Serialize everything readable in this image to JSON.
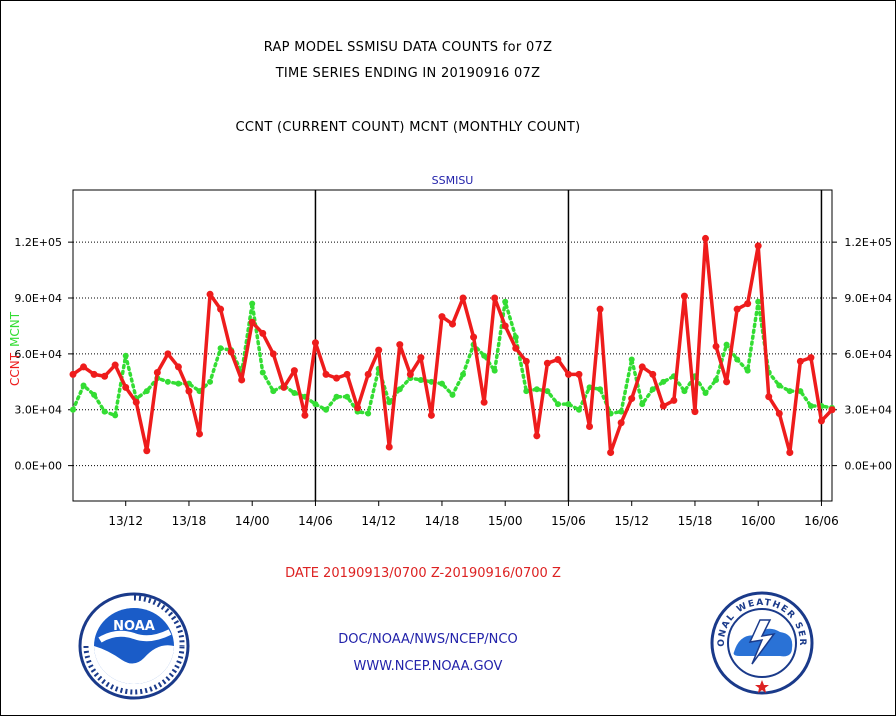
{
  "header": {
    "line1": "RAP MODEL SSMISU DATA COUNTS for 07Z",
    "line2": "TIME SERIES ENDING IN 20190916 07Z",
    "line3": "CCNT (CURRENT COUNT) MCNT (MONTHLY COUNT)"
  },
  "footer": {
    "date_range": "DATE 20190913/0700 Z-20190916/0700 Z",
    "org_path": "DOC/NOAA/NWS/NCEP/NCO",
    "website": "WWW.NCEP.NOAA.GOV",
    "noaa_logo_text": "NOAA",
    "nws_logo_text": "NATIONAL WEATHER SERVICE"
  },
  "colors": {
    "ccnt": "#ee1c1c",
    "mcnt": "#33dd33",
    "panel_title": "#2222aa"
  },
  "chart_data": {
    "type": "line",
    "title": "SSMISU",
    "ylabel_left": [
      "CCNT",
      "MCNT"
    ],
    "left_ticks": [
      "0.0E+00",
      "3.0E+04",
      "6.0E+04",
      "9.0E+04",
      "1.2E+05"
    ],
    "right_ticks": [
      "0.0E+00",
      "3.0E+04",
      "6.0E+04",
      "9.0E+04",
      "1.2E+05"
    ],
    "left_tick_values": [
      0,
      30000,
      60000,
      90000,
      120000
    ],
    "ylim": [
      -19000,
      148000
    ],
    "x_tick_labels": [
      "13/12",
      "13/18",
      "14/00",
      "14/06",
      "14/12",
      "14/18",
      "15/00",
      "15/06",
      "15/12",
      "15/18",
      "16/00",
      "16/06"
    ],
    "x_tick_index": [
      5,
      11,
      17,
      23,
      29,
      35,
      41,
      47,
      53,
      59,
      65,
      71
    ],
    "x_major_index": [
      23,
      47
    ],
    "x_end_index": 71,
    "x_range": [
      0,
      72
    ],
    "grid": true,
    "series": [
      {
        "name": "CCNT",
        "values": [
          49000,
          53000,
          49000,
          48000,
          54000,
          42000,
          34000,
          8000,
          50000,
          60000,
          53000,
          40000,
          17000,
          92000,
          84000,
          61000,
          46000,
          77000,
          71000,
          60000,
          42000,
          51000,
          27000,
          66000,
          49000,
          47000,
          49000,
          31000,
          49000,
          62000,
          10000,
          65000,
          49000,
          58000,
          27000,
          80000,
          76000,
          90000,
          69000,
          34000,
          90000,
          75000,
          63000,
          56000,
          16000,
          55000,
          57000,
          49000,
          49000,
          21000,
          84000,
          7000,
          23000,
          36000,
          53000,
          49000,
          32000,
          35000,
          91000,
          29000,
          122000,
          64000,
          45000,
          84000,
          87000,
          118000,
          37000,
          28000,
          7000,
          56000,
          58000,
          24000,
          30000
        ]
      },
      {
        "name": "MCNT",
        "values": [
          30000,
          43000,
          38000,
          29000,
          27000,
          59000,
          36000,
          40000,
          47000,
          45000,
          44000,
          44000,
          40000,
          45000,
          63000,
          62000,
          50000,
          87000,
          50000,
          40000,
          43000,
          39000,
          37000,
          33000,
          30000,
          37000,
          37000,
          29000,
          28000,
          52000,
          34000,
          41000,
          47000,
          46000,
          45000,
          44000,
          38000,
          49000,
          65000,
          59000,
          51000,
          88000,
          69000,
          40000,
          41000,
          40000,
          33000,
          33000,
          30000,
          42000,
          41000,
          28000,
          29000,
          57000,
          33000,
          41000,
          45000,
          48000,
          40000,
          48000,
          39000,
          46000,
          65000,
          57000,
          51000,
          88000,
          50000,
          43000,
          40000,
          40000,
          32000,
          32000,
          31000
        ]
      }
    ]
  }
}
